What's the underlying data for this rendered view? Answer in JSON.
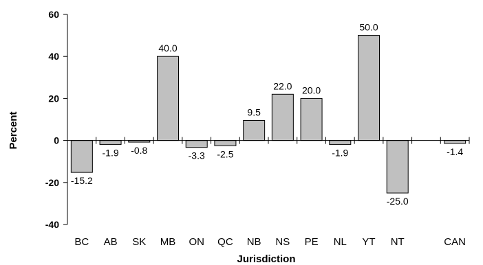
{
  "chart_data": {
    "type": "bar",
    "categories": [
      "BC",
      "AB",
      "SK",
      "MB",
      "ON",
      "QC",
      "NB",
      "NS",
      "PE",
      "NL",
      "YT",
      "NT",
      "",
      "CAN"
    ],
    "values": [
      -15.2,
      -1.9,
      -0.8,
      40.0,
      -3.3,
      -2.5,
      9.5,
      22.0,
      20.0,
      -1.9,
      50.0,
      -25.0,
      null,
      -1.4
    ],
    "data_labels": [
      "-15.2",
      "-1.9",
      "-0.8",
      "40.0",
      "-3.3",
      "-2.5",
      "9.5",
      "22.0",
      "20.0",
      "-1.9",
      "50.0",
      "-25.0",
      "",
      "-1.4"
    ],
    "title": "",
    "xlabel": "Jurisdiction",
    "ylabel": "Percent",
    "ylim": [
      -40,
      60
    ],
    "yticks": [
      -40,
      -20,
      0,
      20,
      40,
      60
    ],
    "ytick_labels": [
      "-40",
      "-20",
      "0",
      "20",
      "40",
      "60"
    ],
    "bar_color": "#c0c0c0",
    "grid": false,
    "legend": "none"
  }
}
